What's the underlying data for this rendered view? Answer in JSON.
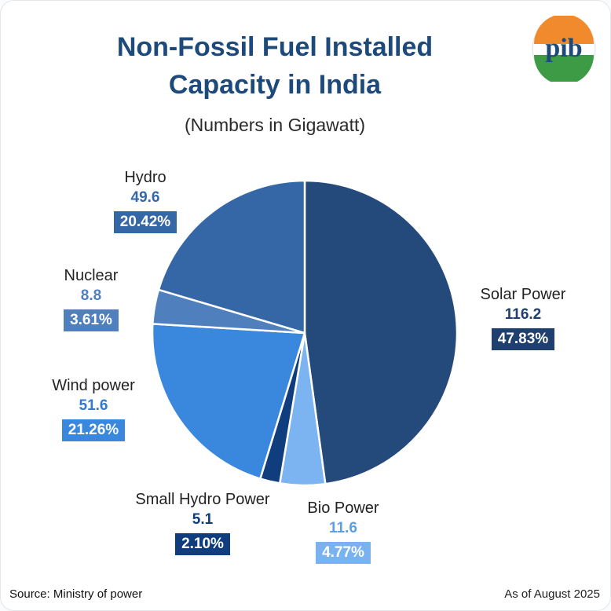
{
  "title_line1": "Non-Fossil Fuel Installed",
  "title_line2": "Capacity in India",
  "subtitle": "(Numbers in Gigawatt)",
  "logo_text": "pib",
  "source": "Source: Ministry of power",
  "as_of": "As of August 2025",
  "chart_data": {
    "type": "pie",
    "title": "Non-Fossil Fuel Installed Capacity in India",
    "subtitle": "(Numbers in Gigawatt)",
    "slices": [
      {
        "name": "Solar Power",
        "value": 116.2,
        "value_label": "116.2",
        "percent_label": "47.83%",
        "color": "#24497b",
        "label_color": "#1f3f6e",
        "badge_color": "#1f3f6e"
      },
      {
        "name": "Bio Power",
        "value": 11.6,
        "value_label": "11.6",
        "percent_label": "4.77%",
        "color": "#7bb4f0",
        "label_color": "#5c9fe6",
        "badge_color": "#79b3ef"
      },
      {
        "name": "Small Hydro Power",
        "value": 5.1,
        "value_label": "5.1",
        "percent_label": "2.10%",
        "color": "#0f3d7d",
        "label_color": "#0f3d7d",
        "badge_color": "#0f3d7d"
      },
      {
        "name": "Wind power",
        "value": 51.6,
        "value_label": "51.6",
        "percent_label": "21.26%",
        "color": "#3a87de",
        "label_color": "#2f7ad2",
        "badge_color": "#3a87de"
      },
      {
        "name": "Nuclear",
        "value": 8.8,
        "value_label": "8.8",
        "percent_label": "3.61%",
        "color": "#4f80bd",
        "label_color": "#4f80bd",
        "badge_color": "#4f80bd"
      },
      {
        "name": "Hydro",
        "value": 49.6,
        "value_label": "49.6",
        "percent_label": "20.42%",
        "color": "#3566a6",
        "label_color": "#3566a6",
        "badge_color": "#3566a6"
      }
    ]
  }
}
